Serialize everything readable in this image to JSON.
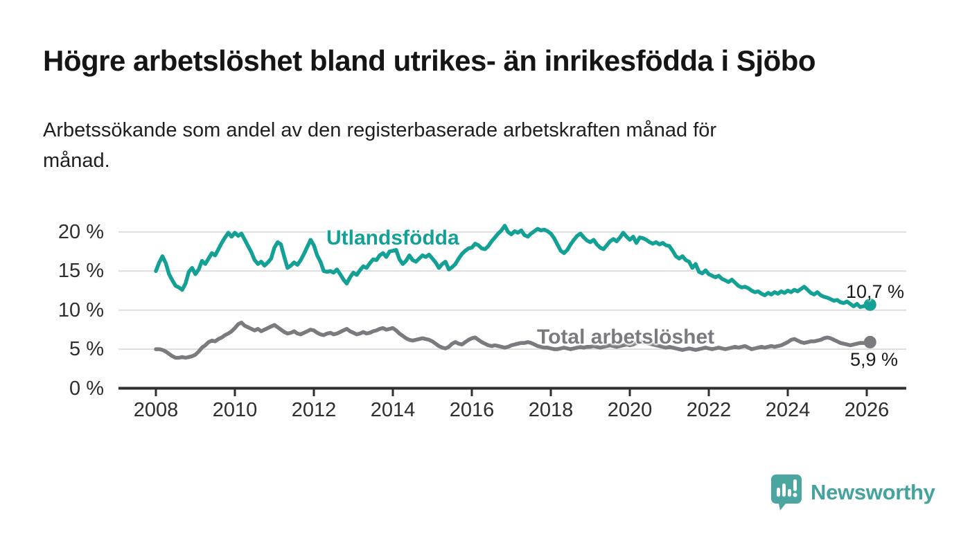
{
  "header": {
    "title": "Högre arbetslöshet bland utrikes- än inrikesfödda i Sjöbo",
    "subtitle_lines": [
      "Arbetssökande som andel av den registerbaserade arbetskraften månad för",
      "månad."
    ]
  },
  "chart_data": {
    "type": "line",
    "title": "",
    "xlabel": "",
    "ylabel": "",
    "grid": true,
    "x_start_year": 2008,
    "x_step_months": 1,
    "x_tick_years": [
      2008,
      2010,
      2012,
      2014,
      2016,
      2018,
      2020,
      2022,
      2024,
      2026
    ],
    "x_tick_labels": [
      "2008",
      "2010",
      "2012",
      "2014",
      "2016",
      "2018",
      "2020",
      "2022",
      "2024",
      "2026"
    ],
    "y_ticks": [
      0,
      5,
      10,
      15,
      20
    ],
    "y_tick_labels": [
      "0 %",
      "5 %",
      "10 %",
      "15 %",
      "20 %"
    ],
    "ylim": [
      0,
      21.5
    ],
    "axis_color": "#2f2f2f",
    "grid_color": "#dddddd",
    "series": [
      {
        "name": "Utlandsfödda",
        "color": "#13a095",
        "end_label": "10,7 %",
        "end_value": 10.7,
        "values": [
          15.0,
          16.1,
          16.9,
          16.0,
          14.6,
          13.8,
          13.1,
          12.9,
          12.6,
          13.4,
          14.9,
          15.4,
          14.6,
          15.2,
          16.3,
          15.9,
          16.6,
          17.3,
          17.0,
          17.8,
          18.6,
          19.3,
          19.9,
          19.4,
          19.9,
          19.5,
          19.8,
          19.0,
          18.2,
          17.4,
          16.4,
          15.9,
          16.2,
          15.7,
          16.1,
          16.6,
          18.0,
          18.7,
          18.4,
          16.8,
          15.4,
          15.7,
          16.1,
          15.8,
          16.4,
          17.2,
          18.1,
          19.0,
          18.3,
          17.0,
          16.2,
          15.0,
          14.9,
          15.0,
          14.8,
          15.2,
          14.6,
          13.9,
          13.4,
          14.2,
          14.8,
          14.5,
          15.1,
          15.6,
          15.4,
          16.0,
          16.5,
          16.4,
          17.0,
          17.3,
          16.8,
          17.5,
          17.6,
          17.7,
          16.5,
          15.9,
          16.3,
          17.0,
          16.4,
          16.2,
          16.6,
          17.0,
          16.8,
          17.1,
          16.6,
          16.1,
          15.4,
          15.9,
          16.2,
          15.2,
          15.5,
          15.9,
          16.6,
          17.2,
          17.6,
          17.9,
          18.0,
          18.5,
          18.3,
          17.9,
          17.8,
          18.2,
          18.8,
          19.3,
          19.8,
          20.2,
          20.8,
          20.0,
          19.7,
          20.1,
          19.9,
          20.2,
          19.6,
          19.4,
          19.8,
          20.1,
          20.4,
          20.2,
          20.3,
          20.1,
          19.8,
          19.2,
          18.4,
          17.6,
          17.3,
          17.7,
          18.4,
          19.0,
          19.5,
          19.8,
          19.3,
          18.9,
          18.7,
          19.0,
          18.4,
          18.0,
          17.8,
          18.3,
          18.8,
          19.1,
          18.8,
          19.3,
          19.9,
          19.4,
          19.0,
          19.4,
          18.6,
          19.3,
          19.2,
          19.0,
          18.7,
          18.5,
          18.7,
          18.4,
          18.6,
          18.3,
          18.2,
          17.6,
          16.9,
          16.6,
          16.9,
          16.4,
          16.2,
          15.4,
          15.9,
          14.9,
          14.7,
          15.1,
          14.6,
          14.4,
          14.2,
          14.4,
          14.0,
          13.8,
          13.6,
          13.9,
          13.5,
          13.1,
          12.9,
          13.0,
          12.8,
          12.5,
          12.3,
          12.4,
          12.1,
          11.9,
          12.2,
          12.0,
          12.3,
          12.1,
          12.4,
          12.2,
          12.5,
          12.3,
          12.6,
          12.4,
          12.7,
          13.0,
          12.6,
          12.2,
          12.0,
          12.3,
          11.9,
          11.7,
          11.6,
          11.4,
          11.2,
          11.3,
          11.0,
          10.9,
          11.1,
          10.8,
          10.5,
          10.8,
          10.4,
          10.5,
          10.6,
          10.7
        ]
      },
      {
        "name": "Total arbetslöshet",
        "color": "#7a7a7f",
        "end_label": "5,9 %",
        "end_value": 5.9,
        "values": [
          5.0,
          5.0,
          4.9,
          4.7,
          4.4,
          4.1,
          3.9,
          3.9,
          4.0,
          3.9,
          4.0,
          4.1,
          4.3,
          4.7,
          5.2,
          5.5,
          5.9,
          6.1,
          6.0,
          6.3,
          6.5,
          6.8,
          7.0,
          7.3,
          7.7,
          8.2,
          8.4,
          8.0,
          7.8,
          7.6,
          7.4,
          7.6,
          7.3,
          7.5,
          7.7,
          7.9,
          8.1,
          7.8,
          7.5,
          7.2,
          7.0,
          7.1,
          7.3,
          7.0,
          6.9,
          7.1,
          7.3,
          7.5,
          7.4,
          7.1,
          6.9,
          6.8,
          7.0,
          7.1,
          6.9,
          7.0,
          7.2,
          7.4,
          7.6,
          7.3,
          7.1,
          6.9,
          7.0,
          7.2,
          7.0,
          7.1,
          7.3,
          7.4,
          7.6,
          7.7,
          7.5,
          7.6,
          7.7,
          7.4,
          7.0,
          6.7,
          6.4,
          6.2,
          6.1,
          6.2,
          6.3,
          6.4,
          6.3,
          6.2,
          6.0,
          5.7,
          5.4,
          5.2,
          5.1,
          5.3,
          5.7,
          5.9,
          5.7,
          5.6,
          5.9,
          6.2,
          6.4,
          6.5,
          6.2,
          5.9,
          5.7,
          5.5,
          5.4,
          5.5,
          5.4,
          5.3,
          5.2,
          5.3,
          5.5,
          5.6,
          5.7,
          5.8,
          5.8,
          5.9,
          5.8,
          5.6,
          5.4,
          5.3,
          5.2,
          5.2,
          5.1,
          5.0,
          5.0,
          5.1,
          5.2,
          5.1,
          5.0,
          5.1,
          5.2,
          5.3,
          5.2,
          5.3,
          5.3,
          5.4,
          5.3,
          5.2,
          5.3,
          5.4,
          5.5,
          5.4,
          5.3,
          5.4,
          5.5,
          5.6,
          5.5,
          5.6,
          5.8,
          6.0,
          5.9,
          5.8,
          5.7,
          5.6,
          5.5,
          5.4,
          5.3,
          5.2,
          5.3,
          5.2,
          5.1,
          5.0,
          4.9,
          5.0,
          5.1,
          5.0,
          4.9,
          5.0,
          5.1,
          5.2,
          5.1,
          5.0,
          5.1,
          5.2,
          5.1,
          5.0,
          5.1,
          5.2,
          5.3,
          5.2,
          5.3,
          5.4,
          5.2,
          5.0,
          5.1,
          5.2,
          5.3,
          5.2,
          5.3,
          5.4,
          5.3,
          5.4,
          5.5,
          5.7,
          5.9,
          6.2,
          6.3,
          6.1,
          5.9,
          5.8,
          5.9,
          6.0,
          6.0,
          6.1,
          6.2,
          6.4,
          6.5,
          6.4,
          6.2,
          6.0,
          5.8,
          5.7,
          5.6,
          5.5,
          5.6,
          5.7,
          5.8,
          5.8,
          5.8,
          5.9
        ]
      }
    ]
  },
  "footer": {
    "brand": "Newsworthy",
    "brand_color": "#44a39d",
    "logo_icon": "bar-chart-speech-bubble-icon"
  }
}
